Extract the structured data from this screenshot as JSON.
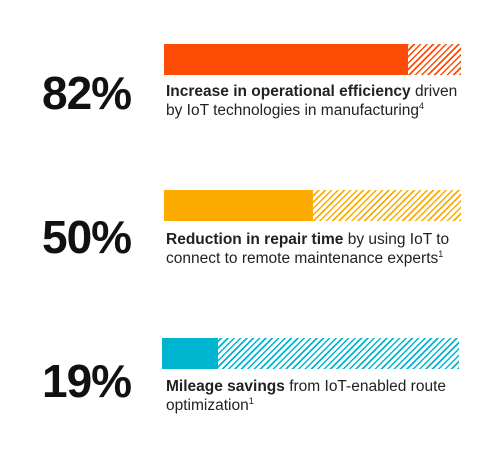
{
  "chart_data": {
    "type": "bar",
    "orientation": "horizontal",
    "items": [
      {
        "value_label": "82%",
        "value": 82,
        "color": "#fd4c06",
        "caption_bold": "Increase in operational efficiency",
        "caption_rest": "driven by IoT technologies in manufacturing",
        "footnote": "4"
      },
      {
        "value_label": "50%",
        "value": 50,
        "color": "#fdab00",
        "caption_bold": "Reduction in repair time",
        "caption_rest": "by using IoT to connect to remote maintenance experts",
        "footnote": "1"
      },
      {
        "value_label": "19%",
        "value": 19,
        "color": "#00b5d0",
        "caption_bold": "Mileage savings",
        "caption_rest": "from IoT-enabled route optimization",
        "footnote": "1"
      }
    ]
  }
}
